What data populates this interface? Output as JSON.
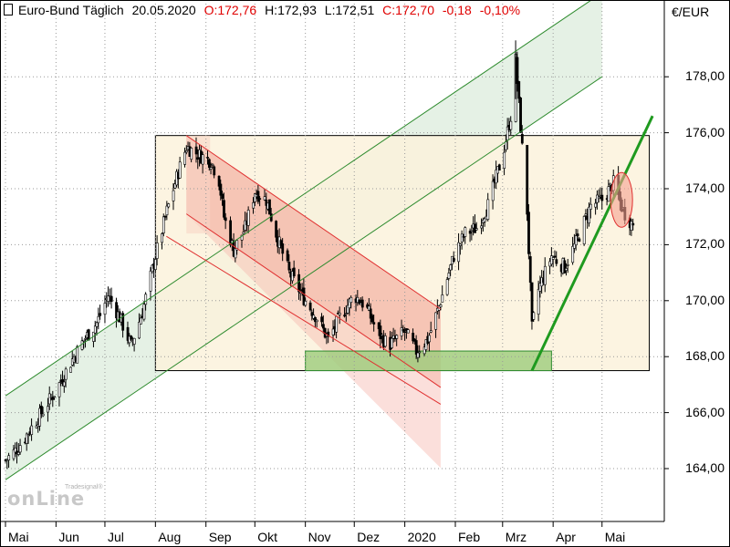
{
  "header": {
    "title": "Euro-Bund Täglich",
    "date": "20.05.2020",
    "open": "O:172,76",
    "high": "H:172,93",
    "low": "L:172,51",
    "close": "C:172,70",
    "change": "-0,18",
    "change_pct": "-0,10%"
  },
  "unit": "€/EUR",
  "logo": {
    "main": "onLine",
    "sub": "Tradesignal®"
  },
  "colors": {
    "up": "#ffffff",
    "down": "#000000",
    "green_channel": "#2e8b2e",
    "red_channel": "#e03030",
    "range_box_fill": "#fbf2dc",
    "support_fill": "#9ccc7c",
    "trend_line": "#1f9a1f"
  },
  "chart_data": {
    "type": "candlestick",
    "title": "Euro-Bund Täglich",
    "ylim": [
      162.3,
      181.0
    ],
    "y_ticks": [
      "164,00",
      "166,00",
      "168,00",
      "170,00",
      "172,00",
      "174,00",
      "176,00",
      "178,00"
    ],
    "x_ticks": [
      "Mai",
      "Jun",
      "Jul",
      "Aug",
      "Sep",
      "Okt",
      "Nov",
      "Dez",
      "2020",
      "Feb",
      "Mrz",
      "Apr",
      "Mai"
    ],
    "x_tick_dates": [
      "2019-05-01",
      "2019-06-01",
      "2019-07-01",
      "2019-08-01",
      "2019-09-01",
      "2019-10-01",
      "2019-11-01",
      "2019-12-01",
      "2020-01-01",
      "2020-02-01",
      "2020-03-01",
      "2020-04-01",
      "2020-05-01"
    ],
    "last_bar": {
      "date": "2020-05-20",
      "open": 172.76,
      "high": 172.93,
      "low": 172.51,
      "close": 172.7
    },
    "approx_close_path": [
      [
        "2019-05-01",
        164.3
      ],
      [
        "2019-05-08",
        164.7
      ],
      [
        "2019-05-15",
        165.3
      ],
      [
        "2019-05-22",
        165.9
      ],
      [
        "2019-06-01",
        166.8
      ],
      [
        "2019-06-10",
        167.8
      ],
      [
        "2019-06-18",
        168.6
      ],
      [
        "2019-06-26",
        169.2
      ],
      [
        "2019-07-03",
        170.2
      ],
      [
        "2019-07-10",
        169.4
      ],
      [
        "2019-07-17",
        168.4
      ],
      [
        "2019-07-24",
        169.6
      ],
      [
        "2019-08-01",
        171.6
      ],
      [
        "2019-08-08",
        173.2
      ],
      [
        "2019-08-15",
        174.6
      ],
      [
        "2019-08-20",
        175.5
      ],
      [
        "2019-08-28",
        175.2
      ],
      [
        "2019-09-04",
        175.0
      ],
      [
        "2019-09-09",
        174.3
      ],
      [
        "2019-09-12",
        173.0
      ],
      [
        "2019-09-18",
        171.8
      ],
      [
        "2019-09-25",
        172.6
      ],
      [
        "2019-10-01",
        173.9
      ],
      [
        "2019-10-08",
        173.6
      ],
      [
        "2019-10-15",
        172.2
      ],
      [
        "2019-10-22",
        171.0
      ],
      [
        "2019-11-01",
        170.0
      ],
      [
        "2019-11-08",
        169.4
      ],
      [
        "2019-11-15",
        168.6
      ],
      [
        "2019-11-22",
        169.4
      ],
      [
        "2019-12-01",
        170.2
      ],
      [
        "2019-12-08",
        169.8
      ],
      [
        "2019-12-15",
        168.9
      ],
      [
        "2019-12-22",
        168.4
      ],
      [
        "2020-01-01",
        168.9
      ],
      [
        "2020-01-08",
        168.2
      ],
      [
        "2020-01-15",
        168.6
      ],
      [
        "2020-01-22",
        169.8
      ],
      [
        "2020-01-31",
        171.6
      ],
      [
        "2020-02-07",
        172.4
      ],
      [
        "2020-02-14",
        172.6
      ],
      [
        "2020-02-21",
        173.4
      ],
      [
        "2020-03-01",
        175.2
      ],
      [
        "2020-03-06",
        176.6
      ],
      [
        "2020-03-09",
        178.6
      ],
      [
        "2020-03-12",
        176.2
      ],
      [
        "2020-03-16",
        173.2
      ],
      [
        "2020-03-19",
        169.0
      ],
      [
        "2020-03-23",
        170.4
      ],
      [
        "2020-03-31",
        171.6
      ],
      [
        "2020-04-08",
        171.2
      ],
      [
        "2020-04-16",
        172.2
      ],
      [
        "2020-04-24",
        173.4
      ],
      [
        "2020-05-01",
        173.6
      ],
      [
        "2020-05-08",
        174.2
      ],
      [
        "2020-05-14",
        173.2
      ],
      [
        "2020-05-20",
        172.7
      ]
    ],
    "annotations": {
      "green_channel": {
        "start": [
          "2019-05-01",
          166.6
        ],
        "end": [
          "2020-05-01",
          181.0
        ],
        "lower_offset": -3.0
      },
      "range_box": {
        "from": "2019-08-01",
        "to": "2020-05-30",
        "top": 175.9,
        "bottom": 167.5
      },
      "support_zone": {
        "from": "2019-11-01",
        "to": "2020-03-31",
        "top": 168.2,
        "bottom": 167.5
      },
      "red_channel": {
        "start": [
          "2019-08-20",
          175.9
        ],
        "end": [
          "2020-01-23",
          169.7
        ],
        "lower_offset": -2.8
      },
      "red_projection_end": [
        "2020-01-23",
        166.3
      ],
      "trend_line": {
        "start": [
          "2020-03-19",
          167.5
        ],
        "end": [
          "2020-06-01",
          176.6
        ]
      },
      "highlight_ellipse": {
        "date": "2020-05-13",
        "value": 173.6
      }
    }
  }
}
